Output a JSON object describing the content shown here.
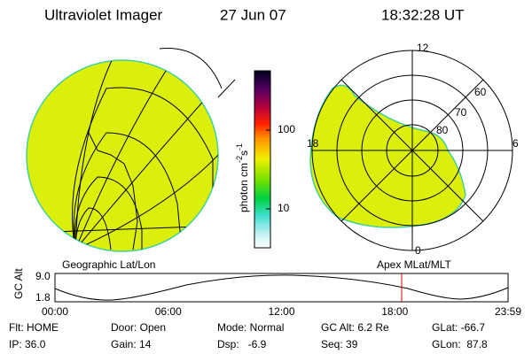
{
  "header": {
    "title": "Ultraviolet Imager",
    "date": "27 Jun 07",
    "time": "18:32:28 UT"
  },
  "left_panel": {
    "label": "Geographic Lat/Lon"
  },
  "right_panel": {
    "label": "Apex MLat/MLT",
    "mlt_labels": [
      "12",
      "18",
      "6",
      "0"
    ],
    "lat_labels": [
      "60",
      "70",
      "80"
    ]
  },
  "colorbar": {
    "unit": "photon cm",
    "exp1": "-2",
    "unit2": "s",
    "exp2": "-1",
    "ticks": [
      "100",
      "10"
    ]
  },
  "timeline": {
    "axis_label": "GC Alt",
    "yticks": [
      "9.0",
      "1.8"
    ],
    "xticks": [
      "00:00",
      "06:00",
      "12:00",
      "18:00",
      "23:59"
    ]
  },
  "status": [
    [
      "Flt: HOME",
      "Door: Open",
      "Mode: Normal",
      "GC Alt: 6.2 Re",
      "GLat: -66.7"
    ],
    [
      "IP: 36.0",
      "Gain: 14",
      "Dsp:   -6.9",
      "Seq: 39",
      "GLon:  87.8"
    ]
  ]
}
